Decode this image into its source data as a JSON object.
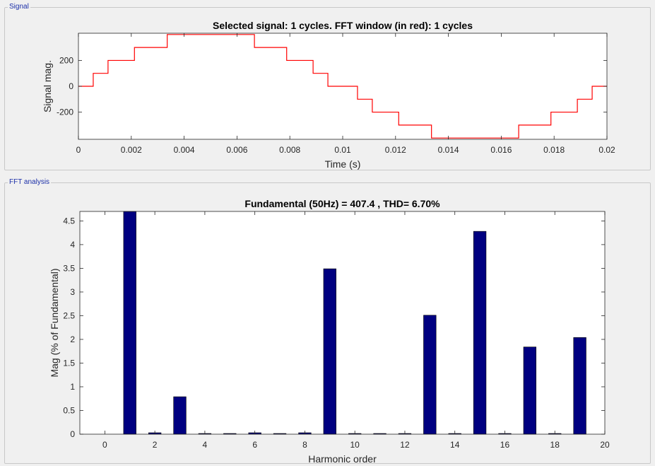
{
  "panels": {
    "signal_label": "Signal",
    "fft_label": "FFT analysis"
  },
  "colors": {
    "signal_line": "#ff0000",
    "bar_fill": "#000080",
    "axis": "#262626"
  },
  "chart_data": [
    {
      "type": "line",
      "title": "Selected signal: 1 cycles. FFT window (in red): 1 cycles",
      "xlabel": "Time (s)",
      "ylabel": "Signal mag.",
      "xlim": [
        0,
        0.02
      ],
      "ylim": [
        -410,
        410
      ],
      "xticks": [
        0,
        0.002,
        0.004,
        0.006,
        0.008,
        0.01,
        0.012,
        0.014,
        0.016,
        0.018,
        0.02
      ],
      "xtick_labels": [
        "0",
        "0.002",
        "0.004",
        "0.006",
        "0.008",
        "0.01",
        "0.012",
        "0.014",
        "0.016",
        "0.018",
        "0.02"
      ],
      "yticks": [
        -200,
        0,
        200
      ],
      "ytick_labels": [
        "-200",
        "0",
        "200"
      ],
      "series": [
        {
          "color": "#ff0000",
          "step": true,
          "x": [
            0,
            0.00056,
            0.00112,
            0.00212,
            0.00336,
            0.00666,
            0.00788,
            0.00888,
            0.00944,
            0.01056,
            0.01112,
            0.01212,
            0.01336,
            0.01666,
            0.01788,
            0.01888,
            0.01944,
            0.02
          ],
          "y": [
            0,
            100,
            200,
            300,
            400,
            300,
            200,
            100,
            0,
            -100,
            -200,
            -300,
            -400,
            -300,
            -200,
            -100,
            0,
            0
          ]
        }
      ]
    },
    {
      "type": "bar",
      "title": "Fundamental (50Hz) = 407.4 , THD= 6.70%",
      "xlabel": "Harmonic order",
      "ylabel": "Mag (% of Fundamental)",
      "xlim": [
        -1,
        20
      ],
      "ylim": [
        0,
        4.7
      ],
      "xticks": [
        0,
        2,
        4,
        6,
        8,
        10,
        12,
        14,
        16,
        18,
        20
      ],
      "yticks": [
        0,
        0.5,
        1,
        1.5,
        2,
        2.5,
        3,
        3.5,
        4,
        4.5
      ],
      "ytick_labels": [
        "0",
        "0.5",
        "1",
        "1.5",
        "2",
        "2.5",
        "3",
        "3.5",
        "4",
        "4.5"
      ],
      "categories": [
        1,
        2,
        3,
        4,
        5,
        6,
        7,
        8,
        9,
        10,
        11,
        12,
        13,
        14,
        15,
        16,
        17,
        18,
        19
      ],
      "values": [
        4.7,
        0.03,
        0.79,
        0.01,
        0.01,
        0.03,
        0.01,
        0.03,
        3.49,
        0.01,
        0.01,
        0,
        2.51,
        0.01,
        4.28,
        0.01,
        1.84,
        0.01,
        2.04
      ],
      "color": "#000080"
    }
  ]
}
